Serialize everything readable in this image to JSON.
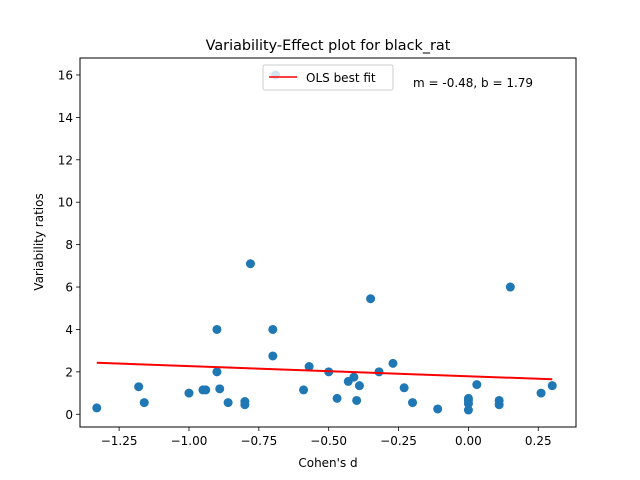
{
  "chart_data": {
    "type": "scatter",
    "title": "Variability-Effect plot for black_rat",
    "xlabel": "Cohen's d",
    "ylabel": "Variability ratios",
    "xlim": [
      -1.39,
      0.385
    ],
    "ylim": [
      -0.6,
      16.8
    ],
    "xticks": [
      -1.25,
      -1.0,
      -0.75,
      -0.5,
      -0.25,
      0.0,
      0.25
    ],
    "xtick_labels": [
      "−1.25",
      "−1.00",
      "−0.75",
      "−0.50",
      "−0.25",
      "0.00",
      "0.25"
    ],
    "yticks": [
      0,
      2,
      4,
      6,
      8,
      10,
      12,
      14,
      16
    ],
    "ytick_labels": [
      "0",
      "2",
      "4",
      "6",
      "8",
      "10",
      "12",
      "14",
      "16"
    ],
    "grid": false,
    "legend": {
      "location": "upper center",
      "entries": [
        "OLS best fit"
      ]
    },
    "annotation": "m = -0.48, b = 1.79",
    "colors": {
      "points": "#1f77b4",
      "fit_line": "#ff0000"
    },
    "series": [
      {
        "kind": "points",
        "x": [
          -1.33,
          -1.18,
          -1.16,
          -1.0,
          -0.95,
          -0.94,
          -0.9,
          -0.9,
          -0.89,
          -0.86,
          -0.8,
          -0.8,
          -0.78,
          -0.7,
          -0.7,
          -0.69,
          -0.59,
          -0.57,
          -0.5,
          -0.47,
          -0.43,
          -0.41,
          -0.4,
          -0.39,
          -0.35,
          -0.32,
          -0.27,
          -0.23,
          -0.2,
          -0.11,
          0.0,
          0.0,
          0.0,
          0.0,
          0.03,
          0.11,
          0.11,
          0.15,
          0.26,
          0.3
        ],
        "y": [
          0.3,
          1.3,
          0.55,
          1.0,
          1.15,
          1.15,
          4.0,
          2.0,
          1.2,
          0.55,
          0.45,
          0.6,
          7.1,
          4.0,
          2.75,
          16.0,
          1.15,
          2.25,
          2.0,
          0.75,
          1.55,
          1.75,
          0.65,
          1.35,
          5.45,
          2.0,
          2.4,
          1.25,
          0.55,
          0.25,
          0.75,
          0.5,
          0.65,
          0.2,
          1.4,
          0.45,
          0.65,
          6.0,
          1.0,
          1.35
        ]
      },
      {
        "name": "OLS best fit",
        "kind": "line",
        "x": [
          -1.33,
          0.3
        ],
        "y": [
          2.43,
          1.65
        ]
      }
    ]
  }
}
